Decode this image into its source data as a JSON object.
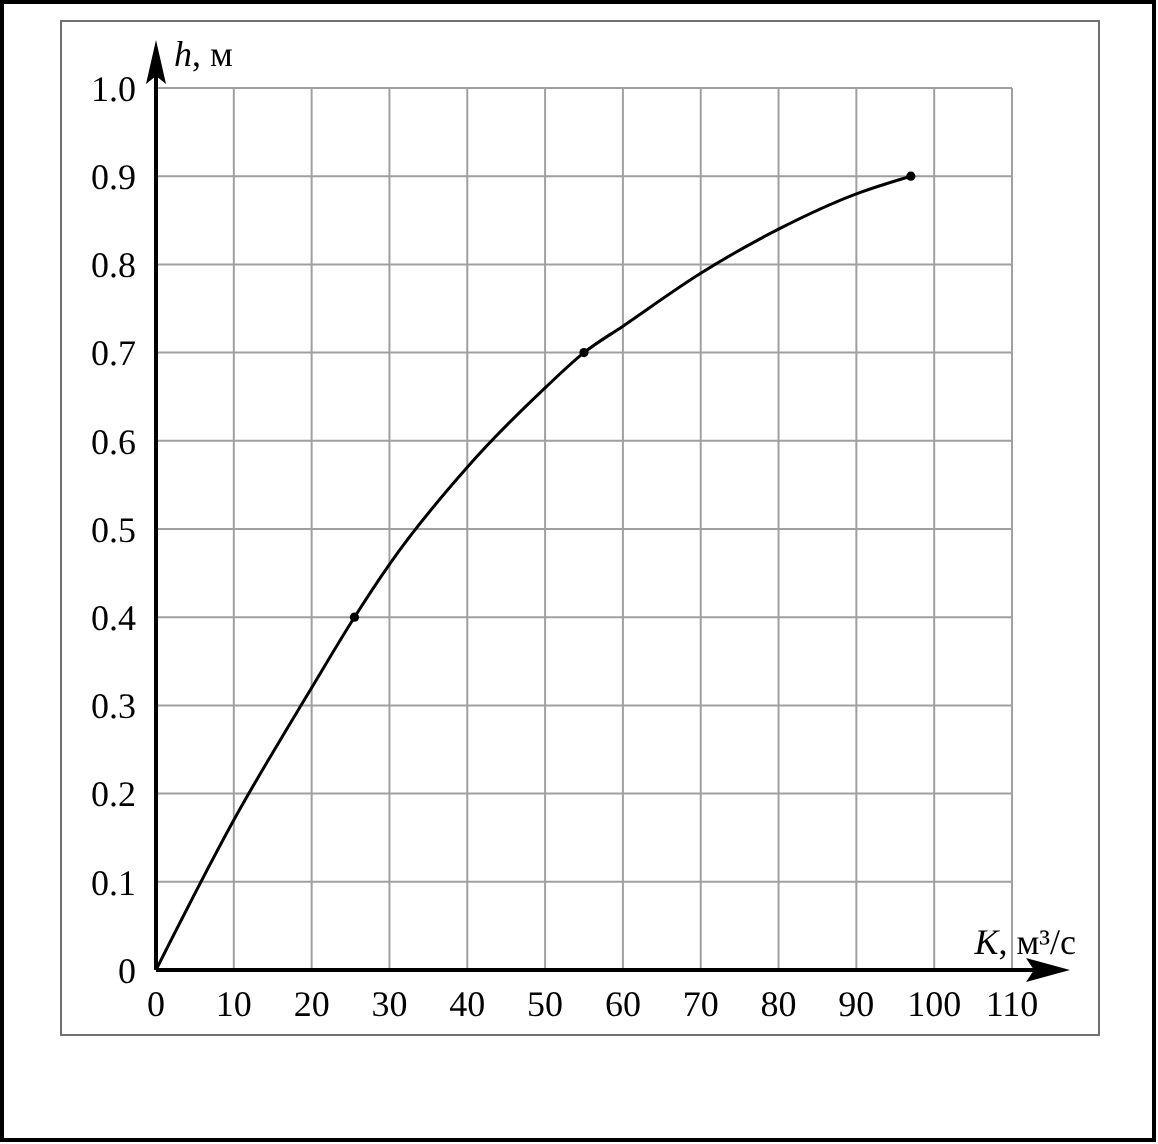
{
  "chart_data": {
    "type": "line",
    "xlabel": "K, м³/с",
    "ylabel": "h, м",
    "xlim": [
      0,
      110
    ],
    "ylim": [
      0,
      1
    ],
    "xticks": [
      0,
      10,
      20,
      30,
      40,
      50,
      60,
      70,
      80,
      90,
      100,
      110
    ],
    "yticks": [
      0,
      0.1,
      0.2,
      0.3,
      0.4,
      0.5,
      0.6,
      0.7,
      0.8,
      0.9,
      {
        "value": 1,
        "label": "1.0"
      }
    ],
    "grid": true,
    "series": [
      {
        "color": "#000000",
        "marker": "none",
        "x": [
          0,
          10,
          20,
          25.5,
          30,
          40,
          50,
          55,
          60,
          70,
          80,
          90,
          97
        ],
        "values": [
          0,
          0.17,
          0.32,
          0.4,
          0.46,
          0.57,
          0.66,
          0.7,
          0.73,
          0.79,
          0.84,
          0.88,
          0.9
        ]
      },
      {
        "type": "scatter",
        "color": "#000000",
        "marker": "circle",
        "x": [
          25.5,
          55,
          97
        ],
        "values": [
          0.4,
          0.7,
          0.9
        ]
      }
    ]
  }
}
